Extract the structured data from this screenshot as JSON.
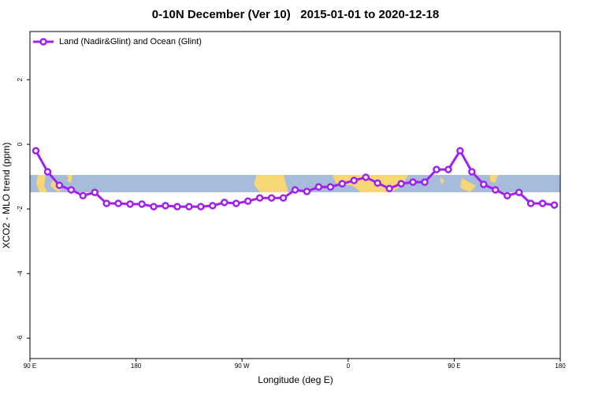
{
  "chart_data": {
    "type": "line",
    "title": "0-10N December (Ver 10)   2015-01-01 to 2020-12-18",
    "xlabel": "Longitude (deg E)",
    "ylabel": "XCO2 - MLO trend (ppm)",
    "x": [
      95,
      105,
      115,
      125,
      135,
      145,
      155,
      165,
      175,
      185,
      195,
      205,
      215,
      225,
      235,
      245,
      255,
      265,
      275,
      285,
      295,
      305,
      315,
      325,
      335,
      345,
      355,
      365,
      375,
      385,
      395,
      405,
      415,
      425,
      435,
      445,
      455,
      465,
      475,
      485,
      495,
      505,
      515,
      525,
      535
    ],
    "series": [
      {
        "name": "Land (Nadir&Glint) and Ocean (Glint)",
        "color": "#a020f0",
        "values": [
          -0.2,
          -0.85,
          -1.27,
          -1.41,
          -1.59,
          -1.49,
          -1.83,
          -1.83,
          -1.85,
          -1.85,
          -1.93,
          -1.9,
          -1.93,
          -1.93,
          -1.93,
          -1.9,
          -1.8,
          -1.83,
          -1.76,
          -1.66,
          -1.66,
          -1.66,
          -1.41,
          -1.46,
          -1.32,
          -1.32,
          -1.22,
          -1.12,
          -1.02,
          -1.2,
          -1.37,
          -1.22,
          -1.17,
          -1.17,
          -0.78,
          -0.78,
          -0.2,
          -0.85,
          -1.24,
          -1.41,
          -1.59,
          -1.49,
          -1.83,
          -1.83,
          -1.88
        ]
      }
    ],
    "xlim": [
      90,
      540
    ],
    "xticks": [
      {
        "value": 90,
        "label": "90 E"
      },
      180,
      {
        "value": 270,
        "label": "90 W"
      },
      {
        "value": 360,
        "label": "0"
      },
      {
        "value": 450,
        "label": "90 E"
      },
      {
        "value": 540,
        "label": "180"
      }
    ],
    "ylim": [
      -6.63,
      3.49
    ],
    "yticks": [
      -6,
      -4,
      -2,
      0,
      2
    ],
    "legend": "top-left"
  }
}
